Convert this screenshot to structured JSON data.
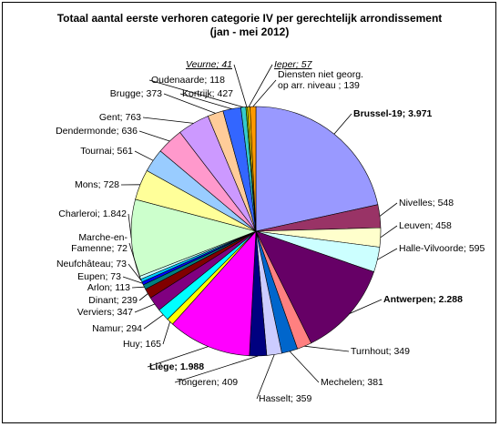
{
  "chart_data": {
    "type": "pie",
    "title": "Totaal aantal eerste verhoren categorie IV per gerechtelijk arrondissement",
    "subtitle": "(jan - mei 2012)",
    "slices": [
      {
        "name": "Brussel-19",
        "value": 3971,
        "label": "Brussel-19; 3.971",
        "color": "#9999FF",
        "bold": true
      },
      {
        "name": "Nivelles",
        "value": 548,
        "label": "Nivelles; 548",
        "color": "#993366"
      },
      {
        "name": "Leuven",
        "value": 458,
        "label": "Leuven; 458",
        "color": "#FFFFCC"
      },
      {
        "name": "Halle-Vilvoorde",
        "value": 595,
        "label": "Halle-Vilvoorde; 595",
        "color": "#CCFFFF"
      },
      {
        "name": "Antwerpen",
        "value": 2288,
        "label": "Antwerpen; 2.288",
        "color": "#660066",
        "bold": true
      },
      {
        "name": "Turnhout",
        "value": 349,
        "label": "Turnhout; 349",
        "color": "#FF8080"
      },
      {
        "name": "Mechelen",
        "value": 381,
        "label": "Mechelen; 381",
        "color": "#0066CC"
      },
      {
        "name": "Hasselt",
        "value": 359,
        "label": "Hasselt; 359",
        "color": "#CCCCFF"
      },
      {
        "name": "Tongeren",
        "value": 409,
        "label": "Tongeren; 409",
        "color": "#000080"
      },
      {
        "name": "Liège",
        "value": 1988,
        "label": "Liège; 1.988",
        "color": "#FF00FF",
        "bold": true
      },
      {
        "name": "Huy",
        "value": 165,
        "label": "Huy; 165",
        "color": "#FFFF00"
      },
      {
        "name": "Namur",
        "value": 294,
        "label": "Namur; 294",
        "color": "#00FFFF"
      },
      {
        "name": "Verviers",
        "value": 347,
        "label": "Verviers; 347",
        "color": "#800080"
      },
      {
        "name": "Dinant",
        "value": 239,
        "label": "Dinant; 239",
        "color": "#800000"
      },
      {
        "name": "Arlon",
        "value": 113,
        "label": "Arlon; 113",
        "color": "#008080"
      },
      {
        "name": "Eupen",
        "value": 73,
        "label": "Eupen; 73",
        "color": "#0000FF"
      },
      {
        "name": "Neufchâteau",
        "value": 73,
        "label": "Neufchâteau; 73",
        "color": "#00CCFF"
      },
      {
        "name": "Marche-en-Famenne",
        "value": 72,
        "label": "Marche-en-Famenne; 72",
        "label_lines": [
          "Marche-en-",
          "Famenne; 72"
        ],
        "color": "#CCFFFF"
      },
      {
        "name": "Charleroi",
        "value": 1842,
        "label": "Charleroi; 1.842",
        "color": "#CCFFCC"
      },
      {
        "name": "Mons",
        "value": 728,
        "label": "Mons; 728",
        "color": "#FFFF99"
      },
      {
        "name": "Tournai",
        "value": 561,
        "label": "Tournai; 561",
        "color": "#99CCFF"
      },
      {
        "name": "Dendermonde",
        "value": 636,
        "label": "Dendermonde; 636",
        "color": "#FF99CC"
      },
      {
        "name": "Gent",
        "value": 763,
        "label": "Gent; 763",
        "color": "#CC99FF"
      },
      {
        "name": "Brugge",
        "value": 373,
        "label": "Brugge; 373",
        "color": "#FFCC99"
      },
      {
        "name": "Kortrijk",
        "value": 427,
        "label": "Kortrijk; 427",
        "color": "#3366FF"
      },
      {
        "name": "Oudenaarde",
        "value": 118,
        "label": "Oudenaarde; 118",
        "color": "#33CCCC"
      },
      {
        "name": "Veurne",
        "value": 41,
        "label": "Veurne; 41",
        "color": "#99CC00",
        "italic": true
      },
      {
        "name": "Ieper",
        "value": 57,
        "label": "Ieper; 57",
        "color": "#FFCC00",
        "italic": true
      },
      {
        "name": "Diensten niet georg. op arr. niveau",
        "value": 139,
        "label": "Diensten niet georg. op arr. niveau ; 139",
        "label_lines": [
          "Diensten niet georg.",
          "op arr. niveau ; 139"
        ],
        "color": "#FF9900"
      }
    ],
    "legend": "none",
    "start_angle": "12 o'clock, clockwise"
  }
}
